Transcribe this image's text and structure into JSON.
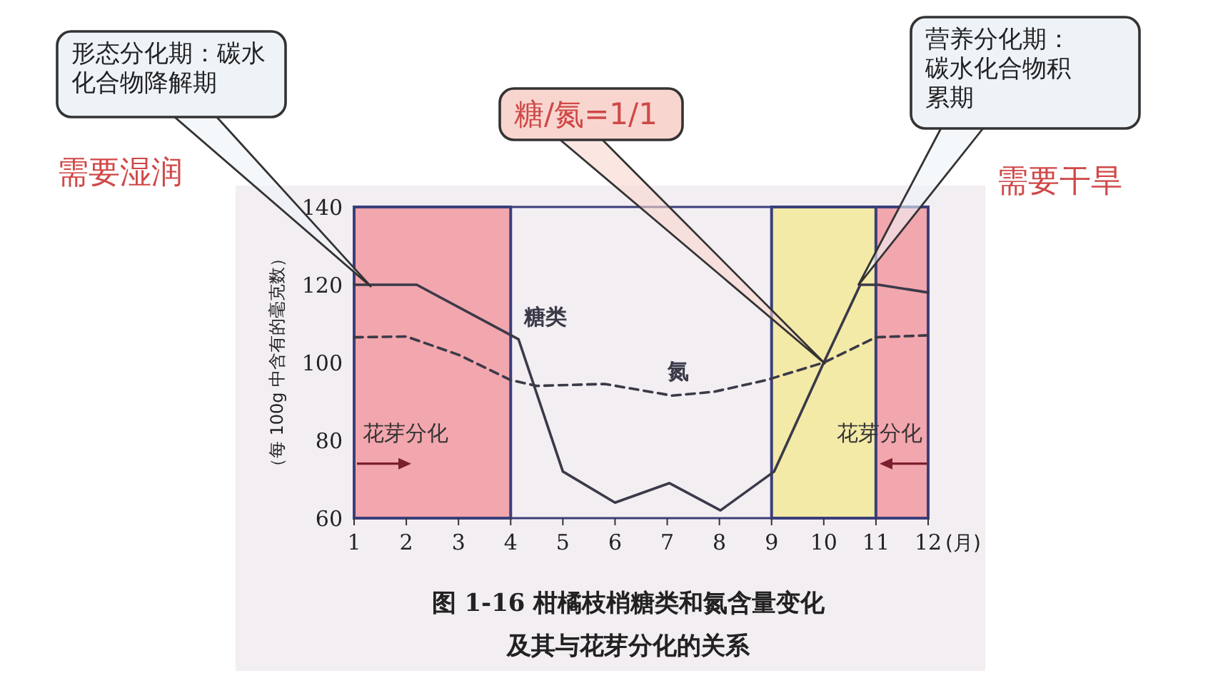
{
  "chart_data": {
    "type": "line",
    "title": "图 1-16 柑橘枝梢糖类和氮含量变化及其与花芽分化的关系",
    "ylabel": "（每 100g 中含有的毫克数）",
    "xlabel": "(月)",
    "xlim": [
      1,
      12
    ],
    "xticks": [
      1,
      2,
      3,
      4,
      5,
      6,
      7,
      8,
      9,
      10,
      11,
      12
    ],
    "ylim": [
      60,
      140
    ],
    "yticks": [
      60,
      80,
      100,
      120,
      140
    ],
    "grid": false,
    "marker": "none",
    "series": [
      {
        "name": "糖类",
        "color": "#3a3a48",
        "line_style": "solid",
        "x": [
          1,
          2.2,
          4.15,
          5,
          6,
          7.04,
          8.02,
          9.05,
          10,
          10.7,
          11.05,
          12
        ],
        "values": [
          120,
          120,
          106,
          72,
          64,
          69,
          62,
          72,
          100,
          120,
          120,
          118
        ]
      },
      {
        "name": "氮",
        "color": "#3a3a48",
        "line_style": "dashed",
        "x": [
          1,
          2,
          3,
          4,
          4.5,
          5.8,
          7.1,
          7.9,
          8.9,
          10,
          11,
          12
        ],
        "values": [
          106.5,
          106.7,
          102,
          95.5,
          94,
          94.5,
          91.5,
          92.5,
          95.5,
          100,
          106.5,
          107
        ]
      }
    ],
    "bands": [
      {
        "axis": "x",
        "from": 1,
        "to": 4,
        "label": "花芽分化",
        "color": "#f2a6ad"
      },
      {
        "axis": "x",
        "from": 9,
        "to": 11,
        "color": "#f4eaa8"
      },
      {
        "axis": "x",
        "from": 11,
        "to": 12,
        "label": "花芽分化",
        "color": "#f2a6ad"
      }
    ],
    "annotations": [
      "形态分化期：碳水化合物降解期",
      "糖/氮=1/1",
      "营养分化期：碳水化合物积累期",
      "需要湿润",
      "需要干旱"
    ]
  }
}
